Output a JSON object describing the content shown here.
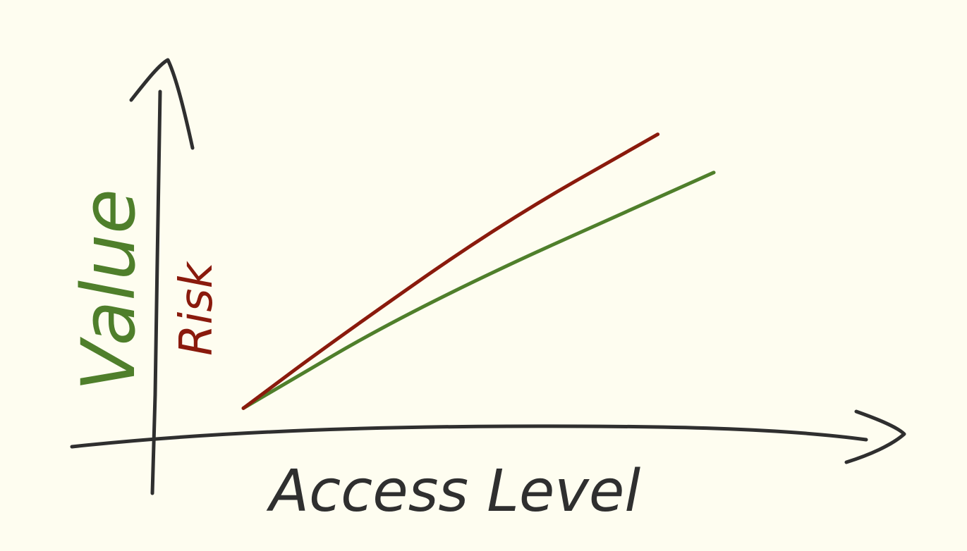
{
  "background": "#fefdf0",
  "chart_data": {
    "type": "line",
    "xlabel": "Access Level",
    "ylabel": "Value",
    "secondary_label": "Risk",
    "x_tick_labels": [],
    "y_tick_labels": [],
    "grid": false,
    "legend": "none",
    "axis_color": "#2f2f2f",
    "series": [
      {
        "name": "Value",
        "color": "#4f7f2b",
        "points": [
          [
            0.16,
            0.09
          ],
          [
            0.48,
            0.42
          ],
          [
            1.0,
            0.83
          ]
        ]
      },
      {
        "name": "Risk",
        "color": "#8a1a0c",
        "points": [
          [
            0.16,
            0.09
          ],
          [
            0.32,
            0.3
          ],
          [
            0.62,
            0.67
          ],
          [
            0.9,
            0.95
          ]
        ]
      }
    ]
  }
}
